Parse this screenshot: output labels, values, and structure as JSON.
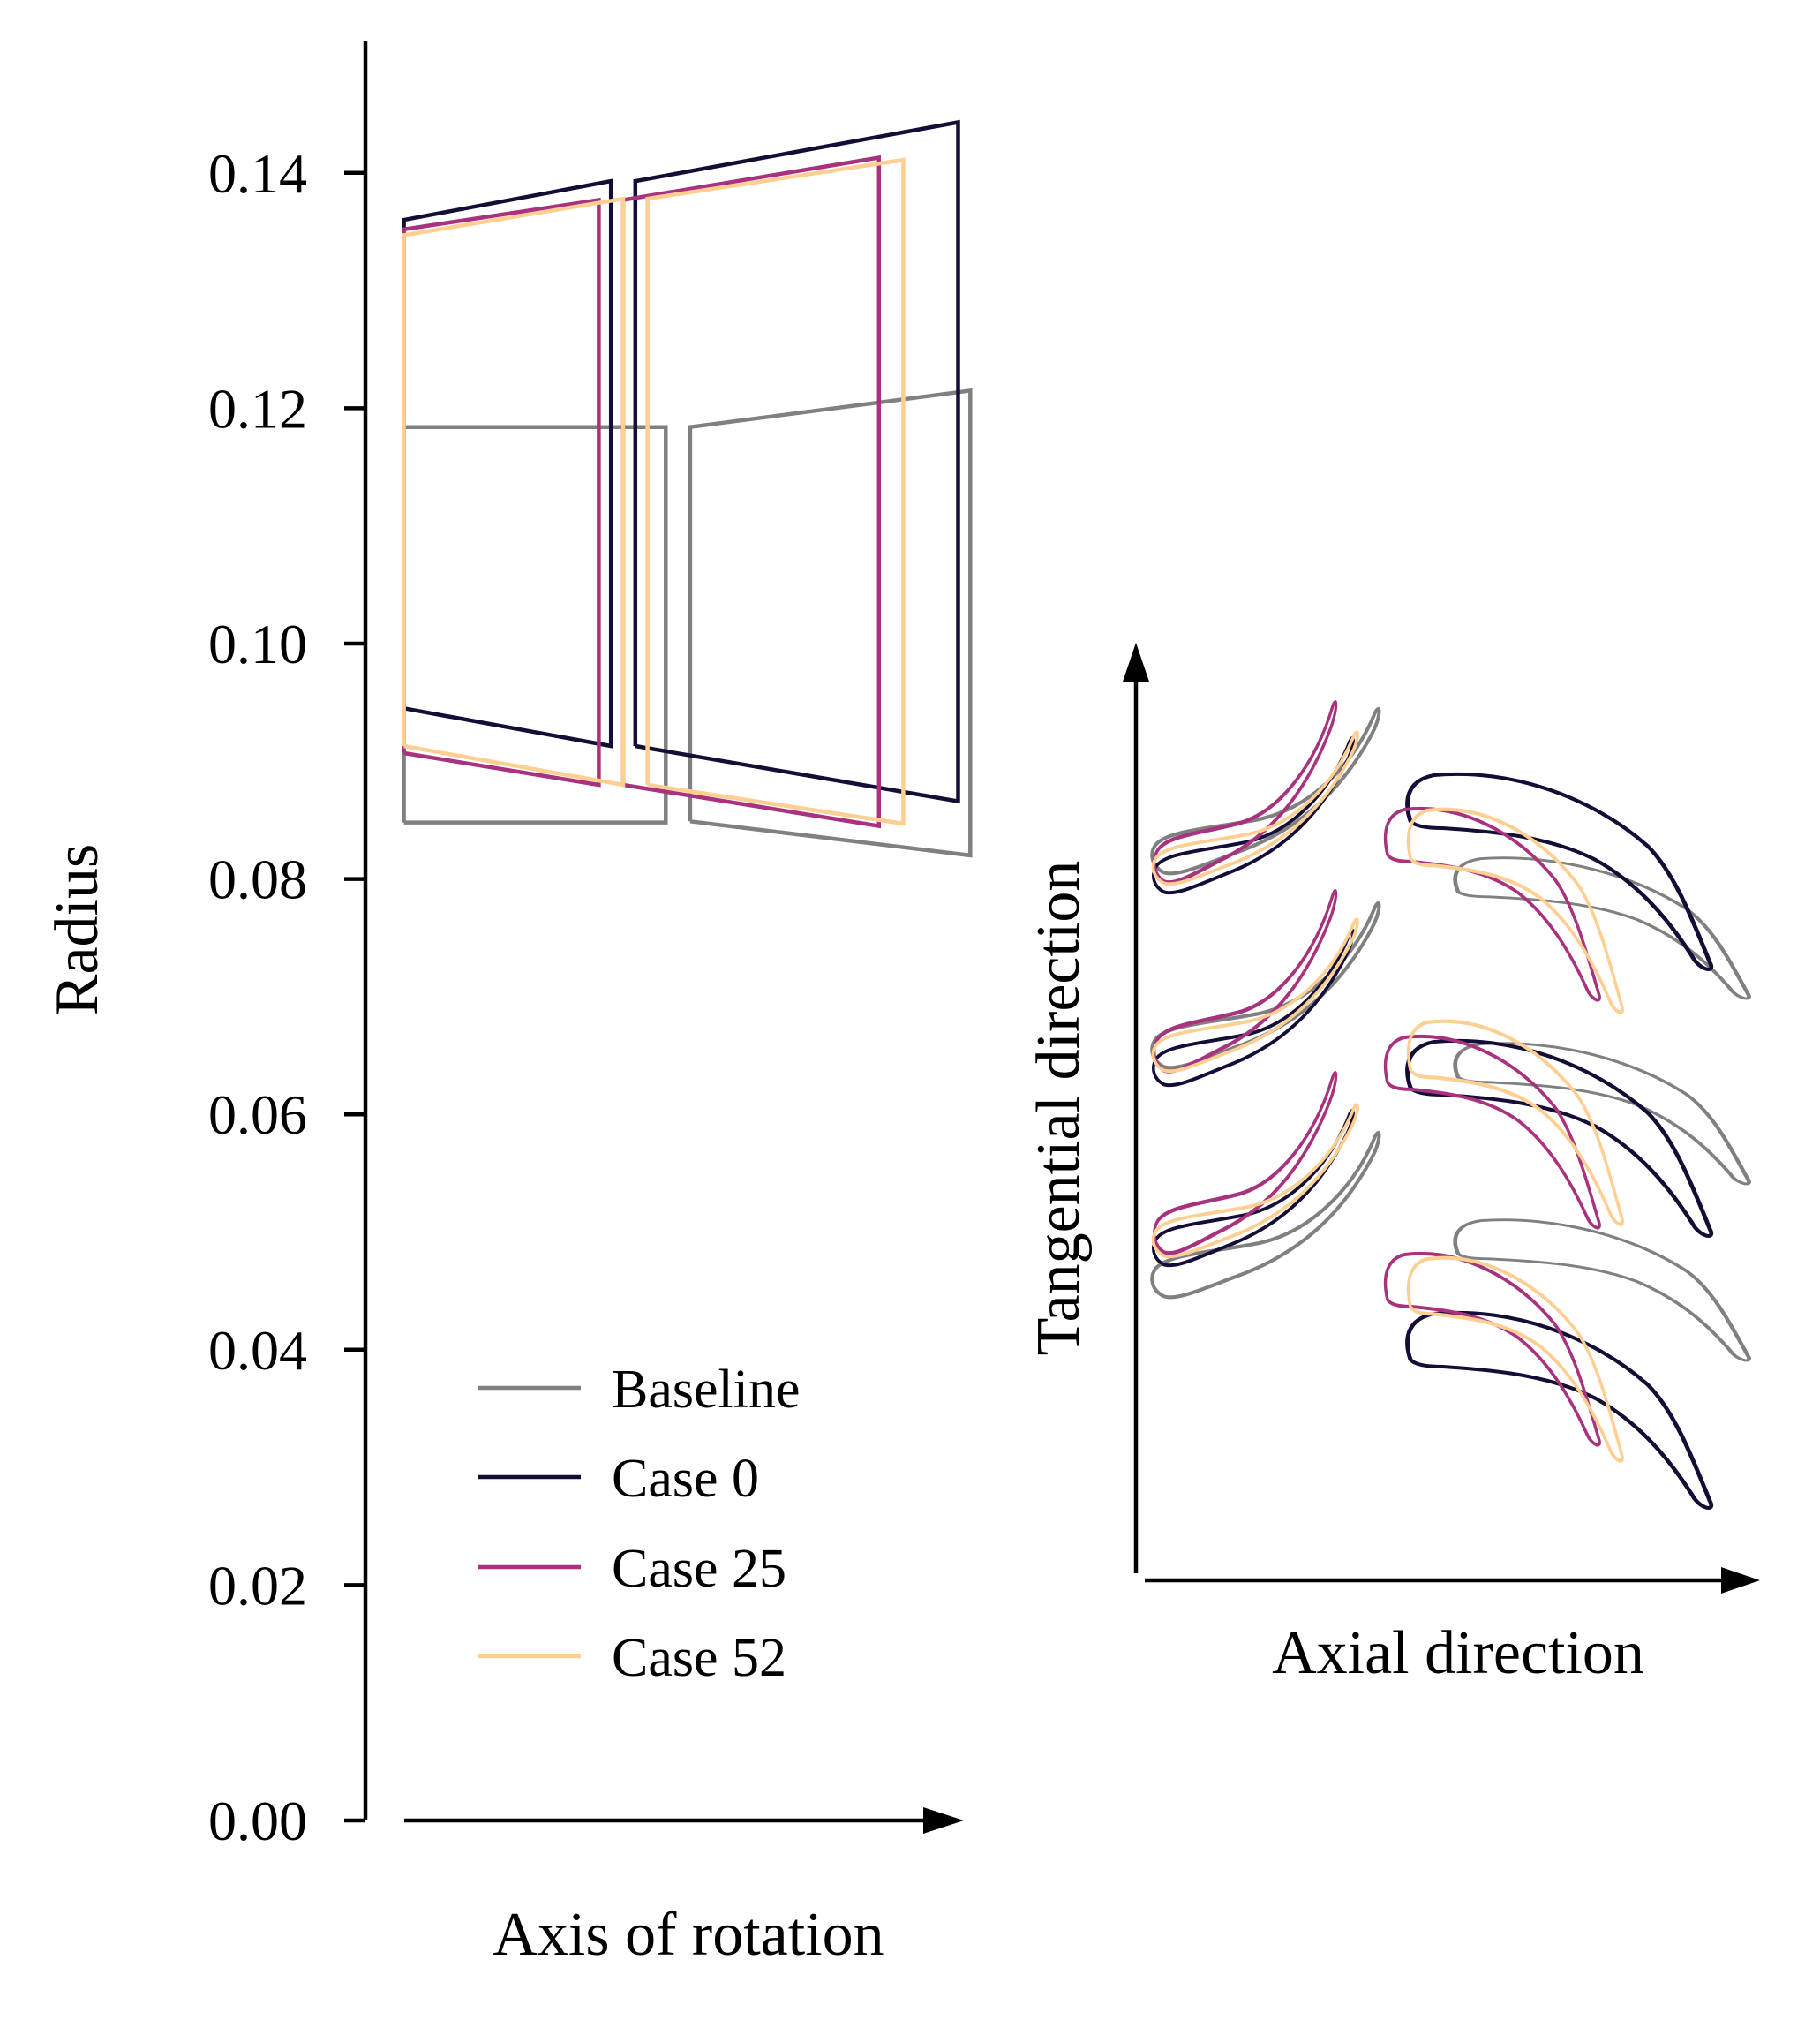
{
  "chart_data": [
    {
      "type": "line",
      "ylabel": "Radius",
      "xlabel": "Axis of rotation",
      "ylim": [
        0.0,
        0.15
      ],
      "yticks": [
        "0.00",
        "0.02",
        "0.04",
        "0.06",
        "0.08",
        "0.10",
        "0.12",
        "0.14"
      ],
      "ytick_values": [
        0.0,
        0.02,
        0.04,
        0.06,
        0.08,
        0.1,
        0.12,
        0.14
      ],
      "xlim": [
        0.0,
        1.0
      ],
      "x_ticks_shown": false,
      "grid": false,
      "legend_position": "lower-center",
      "series": [
        {
          "name": "Baseline",
          "color": "#808080",
          "rows": [
            {
              "x": [
                0.04,
                0.04,
                0.47,
                0.47,
                0.04
              ],
              "y": [
                0.0848,
                0.1184,
                0.1184,
                0.0848,
                0.0848
              ]
            },
            {
              "x": [
                0.51,
                0.51,
                0.97,
                0.97,
                0.51
              ],
              "y": [
                0.0849,
                0.1184,
                0.1215,
                0.082,
                0.0849
              ]
            }
          ]
        },
        {
          "name": "Case 0",
          "color": "#140e36",
          "rows": [
            {
              "x": [
                0.04,
                0.04,
                0.38,
                0.38,
                0.04
              ],
              "y": [
                0.0945,
                0.136,
                0.1393,
                0.0913,
                0.0945
              ]
            },
            {
              "x": [
                0.42,
                0.42,
                0.95,
                0.95,
                0.42
              ],
              "y": [
                0.0913,
                0.1393,
                0.1443,
                0.0866,
                0.0913
              ]
            }
          ]
        },
        {
          "name": "Case 25",
          "color": "#a8327d",
          "rows": [
            {
              "x": [
                0.04,
                0.04,
                0.36,
                0.36,
                0.04
              ],
              "y": [
                0.0907,
                0.1352,
                0.1377,
                0.088,
                0.0907
              ]
            },
            {
              "x": [
                0.4,
                0.4,
                0.82,
                0.82,
                0.4
              ],
              "y": [
                0.088,
                0.1377,
                0.1413,
                0.0845,
                0.088
              ]
            }
          ]
        },
        {
          "name": "Case 52",
          "color": "#fecf92",
          "rows": [
            {
              "x": [
                0.04,
                0.04,
                0.4,
                0.4,
                0.04
              ],
              "y": [
                0.0913,
                0.1347,
                0.1378,
                0.088,
                0.0913
              ]
            },
            {
              "x": [
                0.44,
                0.44,
                0.86,
                0.86,
                0.44
              ],
              "y": [
                0.088,
                0.1378,
                0.1411,
                0.0847,
                0.088
              ]
            }
          ]
        }
      ]
    },
    {
      "type": "line",
      "xlabel": "Axial direction",
      "ylabel": "Tangential direction",
      "x_ticks_shown": false,
      "y_ticks_shown": false,
      "grid": false,
      "series": [
        {
          "name": "Baseline",
          "color": "#808080"
        },
        {
          "name": "Case 0",
          "color": "#140e36"
        },
        {
          "name": "Case 25",
          "color": "#a8327d"
        },
        {
          "name": "Case 52",
          "color": "#fecf92"
        }
      ]
    }
  ]
}
